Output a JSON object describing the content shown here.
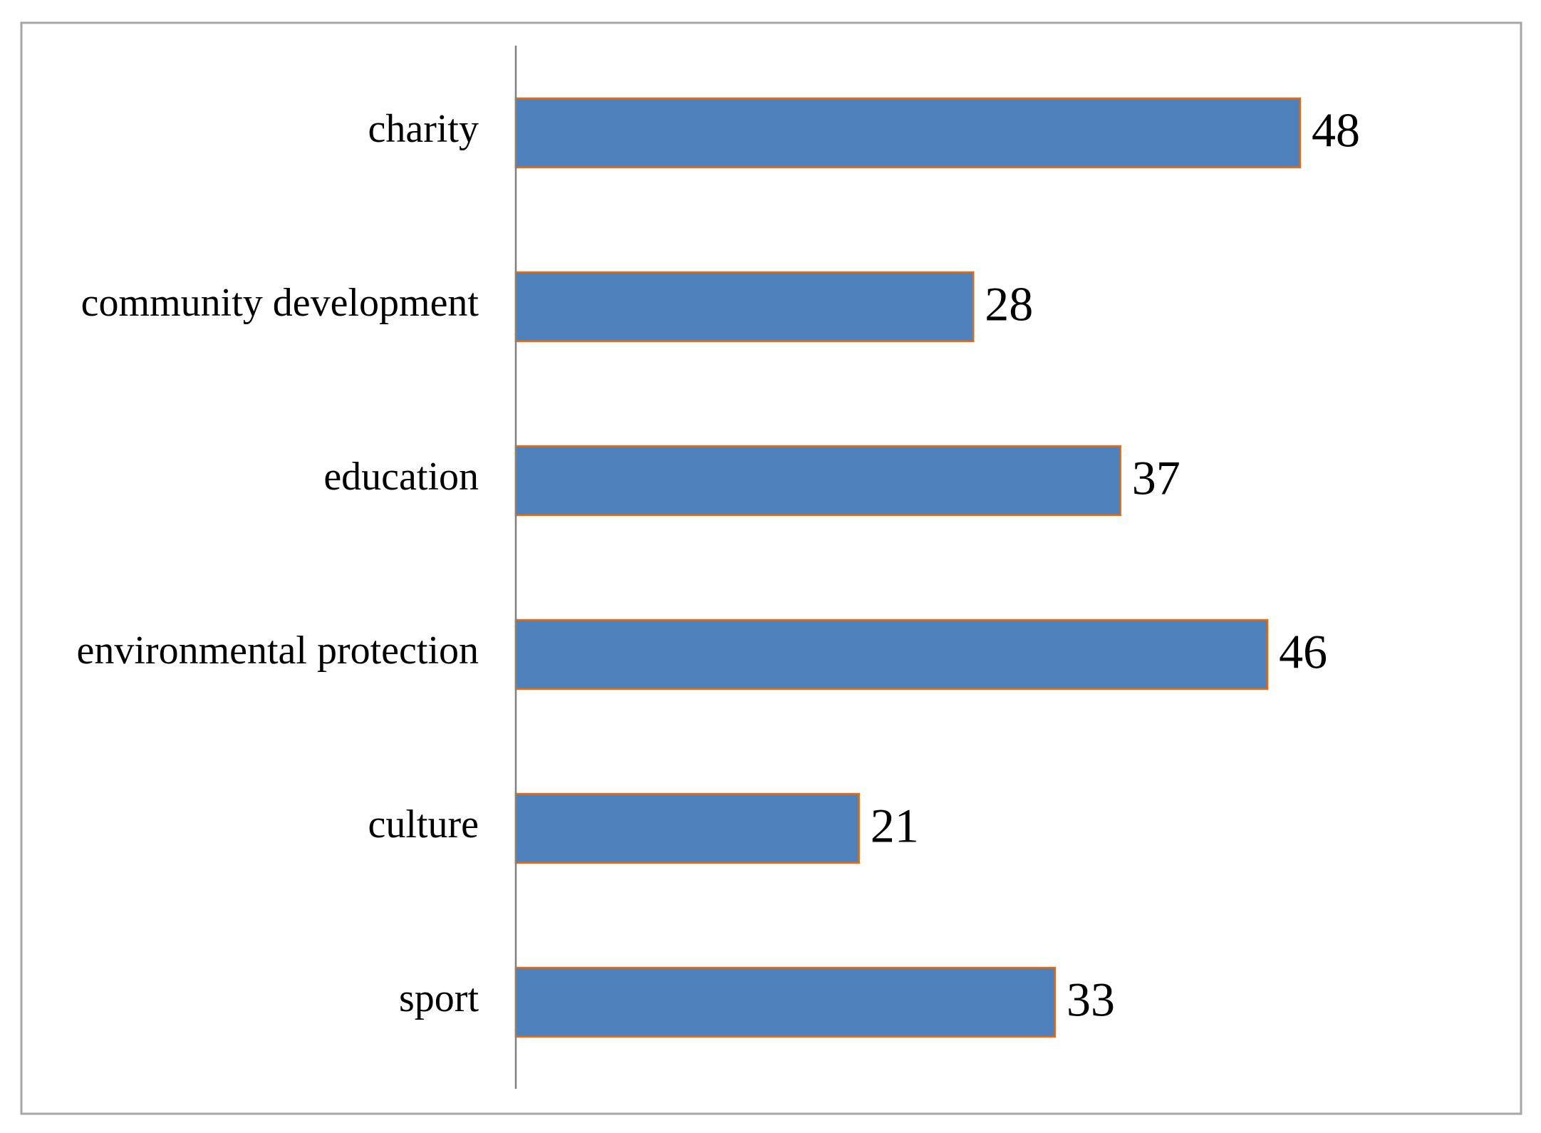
{
  "chart_data": {
    "type": "bar",
    "orientation": "horizontal",
    "categories": [
      "charity",
      "community development",
      "education",
      "environmental protection",
      "culture",
      "sport"
    ],
    "values": [
      48,
      28,
      37,
      46,
      21,
      33
    ],
    "color": "#4f81bd",
    "edge_color": "#e46c0a"
  }
}
